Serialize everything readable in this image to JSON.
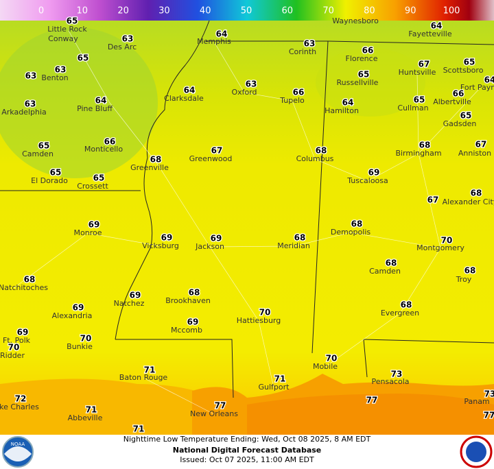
{
  "colorbar": {
    "ticks": [
      0,
      10,
      20,
      30,
      40,
      50,
      60,
      70,
      80,
      90,
      100
    ]
  },
  "cities": [
    {
      "name": "Little Rock",
      "temp": 65
    },
    {
      "name": "Conway",
      "temp": null
    },
    {
      "name": "Des Arc",
      "temp": 63
    },
    {
      "name": "Memphis",
      "temp": 64
    },
    {
      "name": "Waynesboro",
      "temp": null
    },
    {
      "name": "Fayetteville",
      "temp": 64
    },
    {
      "name": "Corinth",
      "temp": 63
    },
    {
      "name": "Florence",
      "temp": 66
    },
    {
      "name": null,
      "temp": 65
    },
    {
      "name": "Benton",
      "temp": 63
    },
    {
      "name": null,
      "temp": 63
    },
    {
      "name": "Huntsville",
      "temp": 67
    },
    {
      "name": "Scottsboro",
      "temp": 65
    },
    {
      "name": "Fort Payne",
      "temp": 64
    },
    {
      "name": "Russellville",
      "temp": 65
    },
    {
      "name": "Pine Bluff",
      "temp": 64
    },
    {
      "name": "Arkadelphia",
      "temp": 63
    },
    {
      "name": "Clarksdale",
      "temp": 64
    },
    {
      "name": "Oxford",
      "temp": 63
    },
    {
      "name": "Tupelo",
      "temp": 66
    },
    {
      "name": "Hamilton",
      "temp": 64
    },
    {
      "name": "Cullman",
      "temp": 65
    },
    {
      "name": "Albertville",
      "temp": 66
    },
    {
      "name": "Gadsden",
      "temp": 65
    },
    {
      "name": "Camden",
      "temp": 65
    },
    {
      "name": "Monticello",
      "temp": 66
    },
    {
      "name": "Greenville",
      "temp": 68
    },
    {
      "name": "Greenwood",
      "temp": 67
    },
    {
      "name": "Columbus",
      "temp": 68
    },
    {
      "name": "Birmingham",
      "temp": 68
    },
    {
      "name": "Anniston",
      "temp": 67
    },
    {
      "name": "El Dorado",
      "temp": 65
    },
    {
      "name": "Crossett",
      "temp": 65
    },
    {
      "name": "Tuscaloosa",
      "temp": 69
    },
    {
      "name": "Alexander City",
      "temp": 68
    },
    {
      "name": null,
      "temp": 67
    },
    {
      "name": "Monroe",
      "temp": 69
    },
    {
      "name": "Vicksburg",
      "temp": 69
    },
    {
      "name": "Jackson",
      "temp": 69
    },
    {
      "name": "Meridian",
      "temp": 68
    },
    {
      "name": "Demopolis",
      "temp": 68
    },
    {
      "name": "Montgomery",
      "temp": 70
    },
    {
      "name": "Natchitoches",
      "temp": 68
    },
    {
      "name": "Camden",
      "temp": 68
    },
    {
      "name": "Troy",
      "temp": 68
    },
    {
      "name": "Natchez",
      "temp": 69
    },
    {
      "name": "Brookhaven",
      "temp": 68
    },
    {
      "name": "Alexandria",
      "temp": 69
    },
    {
      "name": "Hattiesburg",
      "temp": 70
    },
    {
      "name": "Evergreen",
      "temp": 68
    },
    {
      "name": "Mccomb",
      "temp": 69
    },
    {
      "name": "Ft. Polk",
      "temp": 69
    },
    {
      "name": "Ridder",
      "temp": 70
    },
    {
      "name": "Bunkie",
      "temp": 70
    },
    {
      "name": "Mobile",
      "temp": 70
    },
    {
      "name": "Baton Rouge",
      "temp": 71
    },
    {
      "name": "Gulfport",
      "temp": 71
    },
    {
      "name": "Pensacola",
      "temp": 73
    },
    {
      "name": "ke Charles",
      "temp": 72
    },
    {
      "name": "New Orleans",
      "temp": 77
    },
    {
      "name": null,
      "temp": 77
    },
    {
      "name": "Panam",
      "temp": 73
    },
    {
      "name": null,
      "temp": 77
    },
    {
      "name": "Abbeville",
      "temp": 71
    },
    {
      "name": null,
      "temp": 71
    }
  ],
  "footer": {
    "title": "Nighttime Low Temperature Ending: Wed, Oct 08 2025, 8 AM EDT",
    "source": "National Digital Forecast Database",
    "issued": "Issued: Oct 07 2025, 11:00 AM EDT"
  },
  "logos": {
    "noaa": "NOAA"
  }
}
